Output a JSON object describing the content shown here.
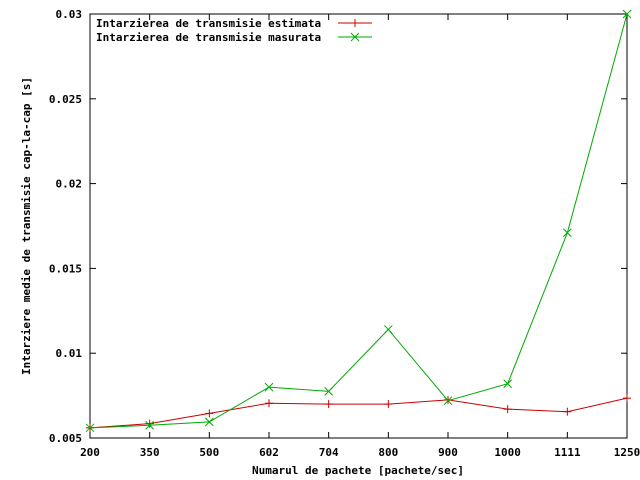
{
  "chart_data": {
    "type": "line",
    "title": "",
    "xlabel": "Numarul de pachete [pachete/sec]",
    "ylabel": "Intarziere medie de transmisie cap-la-cap [s]",
    "categories": [
      "200",
      "350",
      "500",
      "602",
      "704",
      "800",
      "900",
      "1000",
      "1111",
      "1250"
    ],
    "ylim": [
      0.005,
      0.03
    ],
    "yticks": [
      "0.005",
      "0.01",
      "0.015",
      "0.02",
      "0.025",
      "0.03"
    ],
    "legend_position": "top-left",
    "grid": false,
    "series": [
      {
        "name": "Intarzierea de transmisie estimata",
        "color": "#cc0000",
        "marker": "plus",
        "values": [
          0.0056,
          0.00585,
          0.00645,
          0.00705,
          0.007,
          0.007,
          0.00725,
          0.0067,
          0.00655,
          0.00735
        ]
      },
      {
        "name": "Intarzierea de transmisie masurata",
        "color": "#00aa00",
        "marker": "cross",
        "values": [
          0.0056,
          0.00575,
          0.00595,
          0.008,
          0.00775,
          0.0114,
          0.0072,
          0.0082,
          0.0171,
          0.03
        ]
      }
    ]
  }
}
